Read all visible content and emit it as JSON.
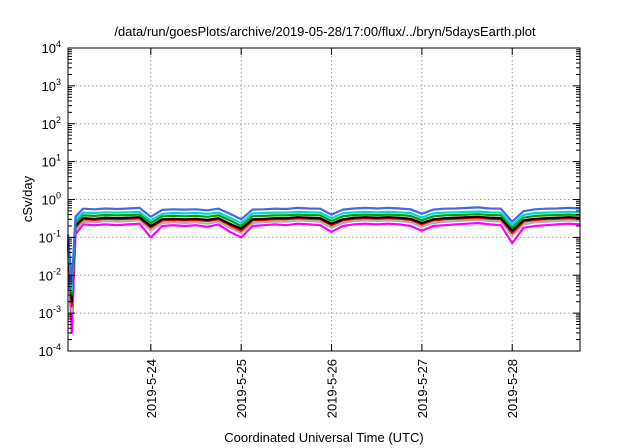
{
  "chart_data": {
    "type": "line",
    "title": "/data/run/goesPlots/archive/2019-05-28/17:00/flux/../bryn/5daysEarth.plot",
    "xlabel": "Coordinated Universal Time (UTC)",
    "ylabel": "cSv/day",
    "yscale": "log",
    "ylim": [
      0.0001,
      10000
    ],
    "xlim": [
      "2019-05-23T02:00",
      "2019-05-28T18:00"
    ],
    "x_ticks": [
      "2019-5-24",
      "2019-5-25",
      "2019-5-26",
      "2019-5-27",
      "2019-5-28"
    ],
    "y_ticks": [
      {
        "value": 0.0001,
        "mantissa": "10",
        "exp": "-4"
      },
      {
        "value": 0.001,
        "mantissa": "10",
        "exp": "-3"
      },
      {
        "value": 0.01,
        "mantissa": "10",
        "exp": "-2"
      },
      {
        "value": 0.1,
        "mantissa": "10",
        "exp": "-1"
      },
      {
        "value": 1,
        "mantissa": "10",
        "exp": "0"
      },
      {
        "value": 10,
        "mantissa": "10",
        "exp": "1"
      },
      {
        "value": 100,
        "mantissa": "10",
        "exp": "2"
      },
      {
        "value": 1000,
        "mantissa": "10",
        "exp": "3"
      },
      {
        "value": 10000,
        "mantissa": "10",
        "exp": "4"
      }
    ],
    "grid": true,
    "x": [
      "2019-05-23T02:00",
      "2019-05-23T03:00",
      "2019-05-23T04:00",
      "2019-05-23T05:00",
      "2019-05-23T06:00",
      "2019-05-23T09:00",
      "2019-05-23T12:00",
      "2019-05-23T15:00",
      "2019-05-23T18:00",
      "2019-05-23T21:00",
      "2019-05-24T00:00",
      "2019-05-24T03:00",
      "2019-05-24T06:00",
      "2019-05-24T09:00",
      "2019-05-24T12:00",
      "2019-05-24T15:00",
      "2019-05-24T18:00",
      "2019-05-24T21:00",
      "2019-05-25T00:00",
      "2019-05-25T03:00",
      "2019-05-25T06:00",
      "2019-05-25T09:00",
      "2019-05-25T12:00",
      "2019-05-25T15:00",
      "2019-05-25T18:00",
      "2019-05-25T21:00",
      "2019-05-26T00:00",
      "2019-05-26T03:00",
      "2019-05-26T06:00",
      "2019-05-26T09:00",
      "2019-05-26T12:00",
      "2019-05-26T15:00",
      "2019-05-26T18:00",
      "2019-05-26T21:00",
      "2019-05-27T00:00",
      "2019-05-27T03:00",
      "2019-05-27T06:00",
      "2019-05-27T09:00",
      "2019-05-27T12:00",
      "2019-05-27T15:00",
      "2019-05-27T18:00",
      "2019-05-27T21:00",
      "2019-05-28T00:00",
      "2019-05-28T03:00",
      "2019-05-28T06:00",
      "2019-05-28T09:00",
      "2019-05-28T12:00",
      "2019-05-28T15:00",
      "2019-05-28T18:00"
    ],
    "series": [
      {
        "color": "#ff00ff",
        "values": [
          0.05,
          0.0003,
          0.12,
          0.16,
          0.22,
          0.21,
          0.22,
          0.21,
          0.22,
          0.23,
          0.1,
          0.2,
          0.21,
          0.2,
          0.21,
          0.19,
          0.22,
          0.14,
          0.1,
          0.2,
          0.21,
          0.22,
          0.21,
          0.23,
          0.22,
          0.21,
          0.14,
          0.2,
          0.22,
          0.23,
          0.22,
          0.23,
          0.22,
          0.2,
          0.15,
          0.2,
          0.21,
          0.22,
          0.23,
          0.24,
          0.22,
          0.21,
          0.07,
          0.18,
          0.2,
          0.21,
          0.22,
          0.23,
          0.22
        ]
      },
      {
        "color": "#b0b0b0",
        "values": [
          0.06,
          0.001,
          0.15,
          0.2,
          0.26,
          0.25,
          0.27,
          0.26,
          0.27,
          0.28,
          0.15,
          0.24,
          0.25,
          0.24,
          0.25,
          0.23,
          0.26,
          0.18,
          0.13,
          0.24,
          0.25,
          0.26,
          0.26,
          0.28,
          0.27,
          0.26,
          0.18,
          0.24,
          0.27,
          0.28,
          0.27,
          0.28,
          0.27,
          0.25,
          0.19,
          0.24,
          0.26,
          0.27,
          0.28,
          0.29,
          0.27,
          0.26,
          0.11,
          0.22,
          0.25,
          0.26,
          0.27,
          0.28,
          0.27
        ]
      },
      {
        "color": "#ff0000",
        "values": [
          0.07,
          0.0015,
          0.18,
          0.24,
          0.3,
          0.29,
          0.31,
          0.3,
          0.31,
          0.32,
          0.18,
          0.28,
          0.29,
          0.28,
          0.29,
          0.27,
          0.3,
          0.21,
          0.15,
          0.28,
          0.29,
          0.3,
          0.3,
          0.32,
          0.31,
          0.3,
          0.21,
          0.28,
          0.31,
          0.32,
          0.31,
          0.32,
          0.31,
          0.29,
          0.22,
          0.28,
          0.3,
          0.31,
          0.32,
          0.33,
          0.31,
          0.3,
          0.13,
          0.26,
          0.29,
          0.3,
          0.31,
          0.32,
          0.31
        ]
      },
      {
        "color": "#000000",
        "values": [
          0.08,
          0.002,
          0.2,
          0.26,
          0.32,
          0.31,
          0.33,
          0.32,
          0.33,
          0.34,
          0.2,
          0.3,
          0.31,
          0.3,
          0.31,
          0.29,
          0.32,
          0.23,
          0.17,
          0.3,
          0.31,
          0.32,
          0.32,
          0.34,
          0.33,
          0.32,
          0.23,
          0.3,
          0.33,
          0.34,
          0.33,
          0.34,
          0.33,
          0.31,
          0.24,
          0.3,
          0.32,
          0.33,
          0.34,
          0.35,
          0.33,
          0.32,
          0.15,
          0.28,
          0.31,
          0.32,
          0.33,
          0.34,
          0.33
        ]
      },
      {
        "color": "#00a000",
        "values": [
          0.09,
          0.003,
          0.24,
          0.3,
          0.38,
          0.37,
          0.39,
          0.38,
          0.39,
          0.4,
          0.24,
          0.36,
          0.37,
          0.36,
          0.37,
          0.35,
          0.38,
          0.28,
          0.2,
          0.36,
          0.37,
          0.38,
          0.38,
          0.4,
          0.39,
          0.38,
          0.27,
          0.36,
          0.39,
          0.4,
          0.39,
          0.4,
          0.39,
          0.37,
          0.28,
          0.36,
          0.38,
          0.39,
          0.4,
          0.41,
          0.39,
          0.38,
          0.18,
          0.33,
          0.37,
          0.38,
          0.39,
          0.4,
          0.39
        ]
      },
      {
        "color": "#00d8d8",
        "values": [
          0.1,
          0.004,
          0.28,
          0.36,
          0.45,
          0.44,
          0.46,
          0.45,
          0.46,
          0.47,
          0.28,
          0.42,
          0.44,
          0.43,
          0.44,
          0.42,
          0.45,
          0.33,
          0.24,
          0.43,
          0.44,
          0.45,
          0.45,
          0.47,
          0.46,
          0.45,
          0.32,
          0.43,
          0.46,
          0.47,
          0.46,
          0.47,
          0.46,
          0.44,
          0.33,
          0.43,
          0.45,
          0.46,
          0.47,
          0.48,
          0.46,
          0.45,
          0.21,
          0.39,
          0.44,
          0.45,
          0.46,
          0.47,
          0.46
        ]
      },
      {
        "color": "#4169e1",
        "values": [
          0.12,
          0.006,
          0.35,
          0.45,
          0.57,
          0.55,
          0.58,
          0.56,
          0.58,
          0.6,
          0.35,
          0.53,
          0.55,
          0.54,
          0.55,
          0.52,
          0.57,
          0.42,
          0.3,
          0.54,
          0.55,
          0.57,
          0.56,
          0.6,
          0.58,
          0.57,
          0.4,
          0.54,
          0.58,
          0.6,
          0.58,
          0.6,
          0.58,
          0.55,
          0.42,
          0.54,
          0.57,
          0.58,
          0.6,
          0.62,
          0.58,
          0.57,
          0.26,
          0.49,
          0.55,
          0.57,
          0.58,
          0.6,
          0.58
        ]
      }
    ]
  }
}
